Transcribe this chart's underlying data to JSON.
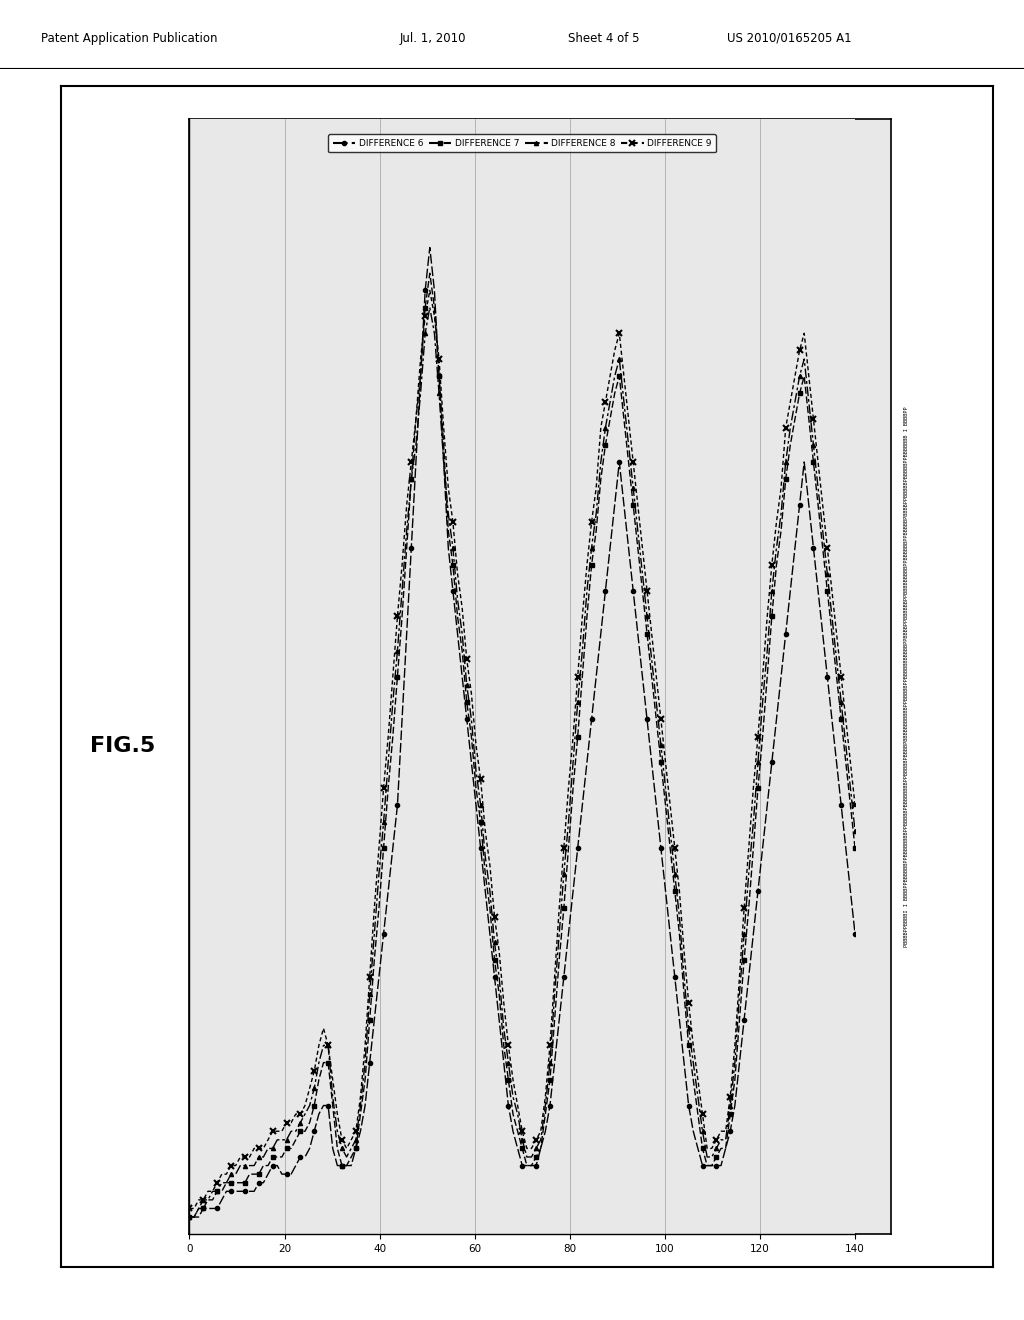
{
  "patent_header_left": "Patent Application Publication",
  "patent_header_date": "Jul. 1, 2010",
  "patent_header_sheet": "Sheet 4 of 5",
  "patent_header_number": "US 2010/0165205 A1",
  "fig_label": "FIG.5",
  "legend_labels": [
    "DIFFERENCE 6",
    "DIFFERENCE 7",
    "DIFFERENCE 8",
    "DIFFERENCE 9"
  ],
  "y_axis_ticks": [
    0,
    20,
    40,
    60,
    80,
    100,
    120,
    140
  ],
  "background_color": "#e8e8e8",
  "pixel_label": "PBBBBPPBBBBI I BBBBPPBBBBBBPPBBBBBBBBPPBBBBBPBBBBBBBBPPBBBBBPBBBBPBBBBBBBBBBBPPBBBBBPPBBBBBBBBBBBPPBBBBPPBBBBBBPPBBBBBBBBBPPBBBBBBPPBBBBBPBBBBPPBBBBBPBBBBBPPBBBBBBB I BBBBPP",
  "diff6": [
    2,
    2,
    2,
    3,
    3,
    3,
    3,
    4,
    5,
    5,
    5,
    5,
    5,
    5,
    5,
    6,
    6,
    7,
    8,
    8,
    7,
    7,
    7,
    8,
    9,
    9,
    10,
    12,
    14,
    15,
    15,
    10,
    8,
    8,
    8,
    8,
    10,
    12,
    15,
    20,
    25,
    30,
    35,
    40,
    45,
    50,
    60,
    70,
    80,
    90,
    100,
    110,
    115,
    110,
    100,
    90,
    80,
    75,
    70,
    65,
    60,
    55,
    50,
    45,
    40,
    35,
    30,
    25,
    20,
    15,
    12,
    10,
    8,
    8,
    8,
    8,
    10,
    12,
    15,
    20,
    25,
    30,
    35,
    40,
    45,
    50,
    55,
    60,
    65,
    70,
    75,
    80,
    85,
    90,
    85,
    80,
    75,
    70,
    65,
    60,
    55,
    50,
    45,
    40,
    35,
    30,
    25,
    20,
    15,
    12,
    10,
    8,
    8,
    8,
    8,
    8,
    10,
    12,
    15,
    20,
    25,
    30,
    35,
    40,
    45,
    50,
    55,
    60,
    65,
    70,
    75,
    80,
    85,
    90,
    85,
    80,
    75,
    70,
    65,
    60,
    55,
    50,
    45,
    40,
    35
  ],
  "diff7": [
    2,
    2,
    3,
    3,
    4,
    4,
    5,
    5,
    6,
    6,
    6,
    6,
    6,
    7,
    7,
    7,
    8,
    8,
    9,
    9,
    9,
    10,
    10,
    11,
    12,
    12,
    13,
    15,
    18,
    20,
    20,
    15,
    10,
    8,
    8,
    9,
    10,
    14,
    18,
    25,
    32,
    38,
    45,
    52,
    58,
    65,
    72,
    80,
    88,
    95,
    100,
    108,
    112,
    108,
    100,
    92,
    82,
    78,
    72,
    68,
    62,
    58,
    52,
    48,
    42,
    38,
    32,
    28,
    22,
    18,
    14,
    12,
    10,
    8,
    8,
    9,
    10,
    14,
    18,
    25,
    32,
    38,
    45,
    52,
    58,
    65,
    72,
    78,
    82,
    88,
    92,
    95,
    98,
    100,
    95,
    90,
    85,
    80,
    75,
    70,
    65,
    60,
    55,
    50,
    45,
    40,
    35,
    28,
    22,
    18,
    14,
    10,
    8,
    8,
    9,
    10,
    10,
    14,
    18,
    25,
    32,
    38,
    45,
    52,
    58,
    65,
    72,
    78,
    82,
    88,
    92,
    95,
    98,
    100,
    95,
    90,
    85,
    80,
    75,
    70,
    65,
    60,
    55,
    50,
    45
  ],
  "diff8": [
    2,
    2,
    3,
    4,
    4,
    5,
    5,
    6,
    6,
    7,
    7,
    8,
    8,
    8,
    8,
    9,
    9,
    10,
    10,
    11,
    11,
    11,
    12,
    12,
    13,
    14,
    15,
    17,
    20,
    22,
    22,
    16,
    12,
    10,
    9,
    10,
    11,
    15,
    20,
    28,
    35,
    42,
    48,
    55,
    62,
    68,
    75,
    82,
    88,
    92,
    98,
    105,
    108,
    105,
    98,
    90,
    84,
    80,
    74,
    70,
    64,
    60,
    54,
    50,
    44,
    40,
    34,
    30,
    24,
    20,
    16,
    14,
    11,
    9,
    9,
    10,
    11,
    15,
    20,
    28,
    35,
    42,
    48,
    55,
    62,
    68,
    75,
    80,
    84,
    90,
    94,
    97,
    100,
    102,
    97,
    92,
    87,
    82,
    77,
    72,
    67,
    62,
    57,
    52,
    47,
    42,
    37,
    30,
    24,
    20,
    16,
    12,
    9,
    9,
    10,
    11,
    11,
    15,
    20,
    28,
    35,
    42,
    48,
    55,
    62,
    68,
    75,
    80,
    84,
    90,
    94,
    97,
    100,
    102,
    97,
    92,
    87,
    82,
    77,
    72,
    67,
    62,
    57,
    52,
    47
  ],
  "diff9": [
    3,
    3,
    4,
    4,
    5,
    5,
    6,
    7,
    7,
    8,
    8,
    9,
    9,
    9,
    10,
    10,
    10,
    11,
    12,
    12,
    12,
    13,
    13,
    14,
    14,
    15,
    17,
    19,
    22,
    24,
    22,
    18,
    14,
    11,
    10,
    11,
    12,
    16,
    22,
    30,
    38,
    45,
    52,
    58,
    65,
    72,
    78,
    85,
    90,
    95,
    102,
    107,
    110,
    107,
    102,
    94,
    87,
    83,
    77,
    73,
    67,
    63,
    57,
    53,
    47,
    43,
    37,
    33,
    27,
    22,
    18,
    15,
    12,
    10,
    10,
    11,
    12,
    16,
    22,
    30,
    38,
    45,
    52,
    58,
    65,
    72,
    78,
    83,
    87,
    94,
    97,
    100,
    103,
    105,
    100,
    95,
    90,
    85,
    80,
    75,
    70,
    65,
    60,
    55,
    50,
    45,
    40,
    33,
    27,
    22,
    18,
    14,
    10,
    10,
    11,
    12,
    12,
    16,
    22,
    30,
    38,
    45,
    52,
    58,
    65,
    72,
    78,
    83,
    87,
    94,
    97,
    100,
    103,
    105,
    100,
    95,
    90,
    85,
    80,
    75,
    70,
    65,
    60,
    55,
    50
  ],
  "num_points": 145
}
